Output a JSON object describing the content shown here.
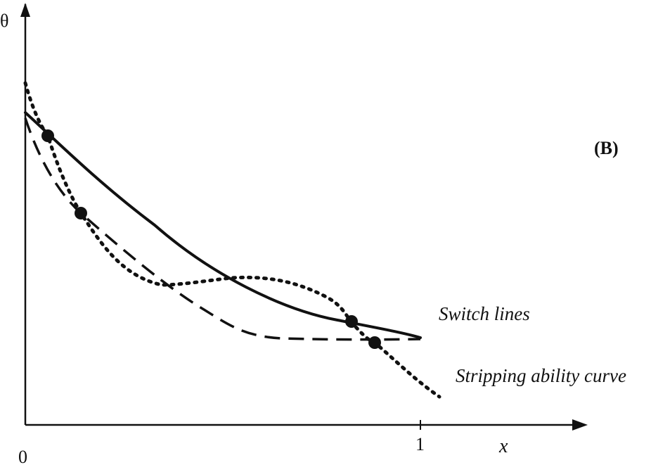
{
  "figure": {
    "panel_label": "(B)",
    "y_axis_label": "θ",
    "x_axis_label": "x",
    "origin_label": "0",
    "x_tick_label": "1",
    "annotations": {
      "switch_lines": "Switch lines",
      "stripping_ability_curve": "Stripping ability curve"
    },
    "curve_styles": {
      "solid_switch_line": "solid",
      "dashed_switch_line": "dashed",
      "stripping_ability_curve": "dotted"
    },
    "colors": {
      "ink": "#111111",
      "background": "#ffffff"
    }
  }
}
